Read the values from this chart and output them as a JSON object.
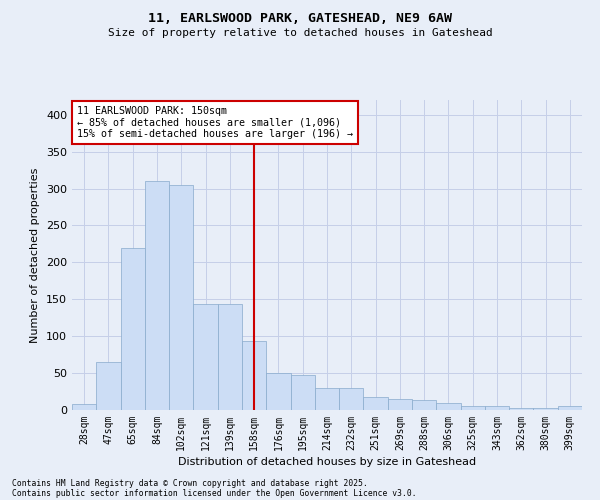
{
  "title1": "11, EARLSWOOD PARK, GATESHEAD, NE9 6AW",
  "title2": "Size of property relative to detached houses in Gateshead",
  "xlabel": "Distribution of detached houses by size in Gateshead",
  "ylabel": "Number of detached properties",
  "categories": [
    "28sqm",
    "47sqm",
    "65sqm",
    "84sqm",
    "102sqm",
    "121sqm",
    "139sqm",
    "158sqm",
    "176sqm",
    "195sqm",
    "214sqm",
    "232sqm",
    "251sqm",
    "269sqm",
    "288sqm",
    "306sqm",
    "325sqm",
    "343sqm",
    "362sqm",
    "380sqm",
    "399sqm"
  ],
  "values": [
    8,
    65,
    220,
    310,
    305,
    143,
    143,
    93,
    50,
    48,
    30,
    30,
    18,
    15,
    13,
    10,
    5,
    5,
    3,
    3,
    5
  ],
  "bar_color": "#ccddf5",
  "bar_edge_color": "#88aacc",
  "grid_color": "#c5cfe8",
  "bg_color": "#e8eef8",
  "vline_color": "#cc0000",
  "annotation_text": "11 EARLSWOOD PARK: 150sqm\n← 85% of detached houses are smaller (1,096)\n15% of semi-detached houses are larger (196) →",
  "annotation_box_color": "#ffffff",
  "annotation_border_color": "#cc0000",
  "footer1": "Contains HM Land Registry data © Crown copyright and database right 2025.",
  "footer2": "Contains public sector information licensed under the Open Government Licence v3.0.",
  "ylim": [
    0,
    420
  ],
  "yticks": [
    0,
    50,
    100,
    150,
    200,
    250,
    300,
    350,
    400
  ],
  "vline_pos": 7.0
}
